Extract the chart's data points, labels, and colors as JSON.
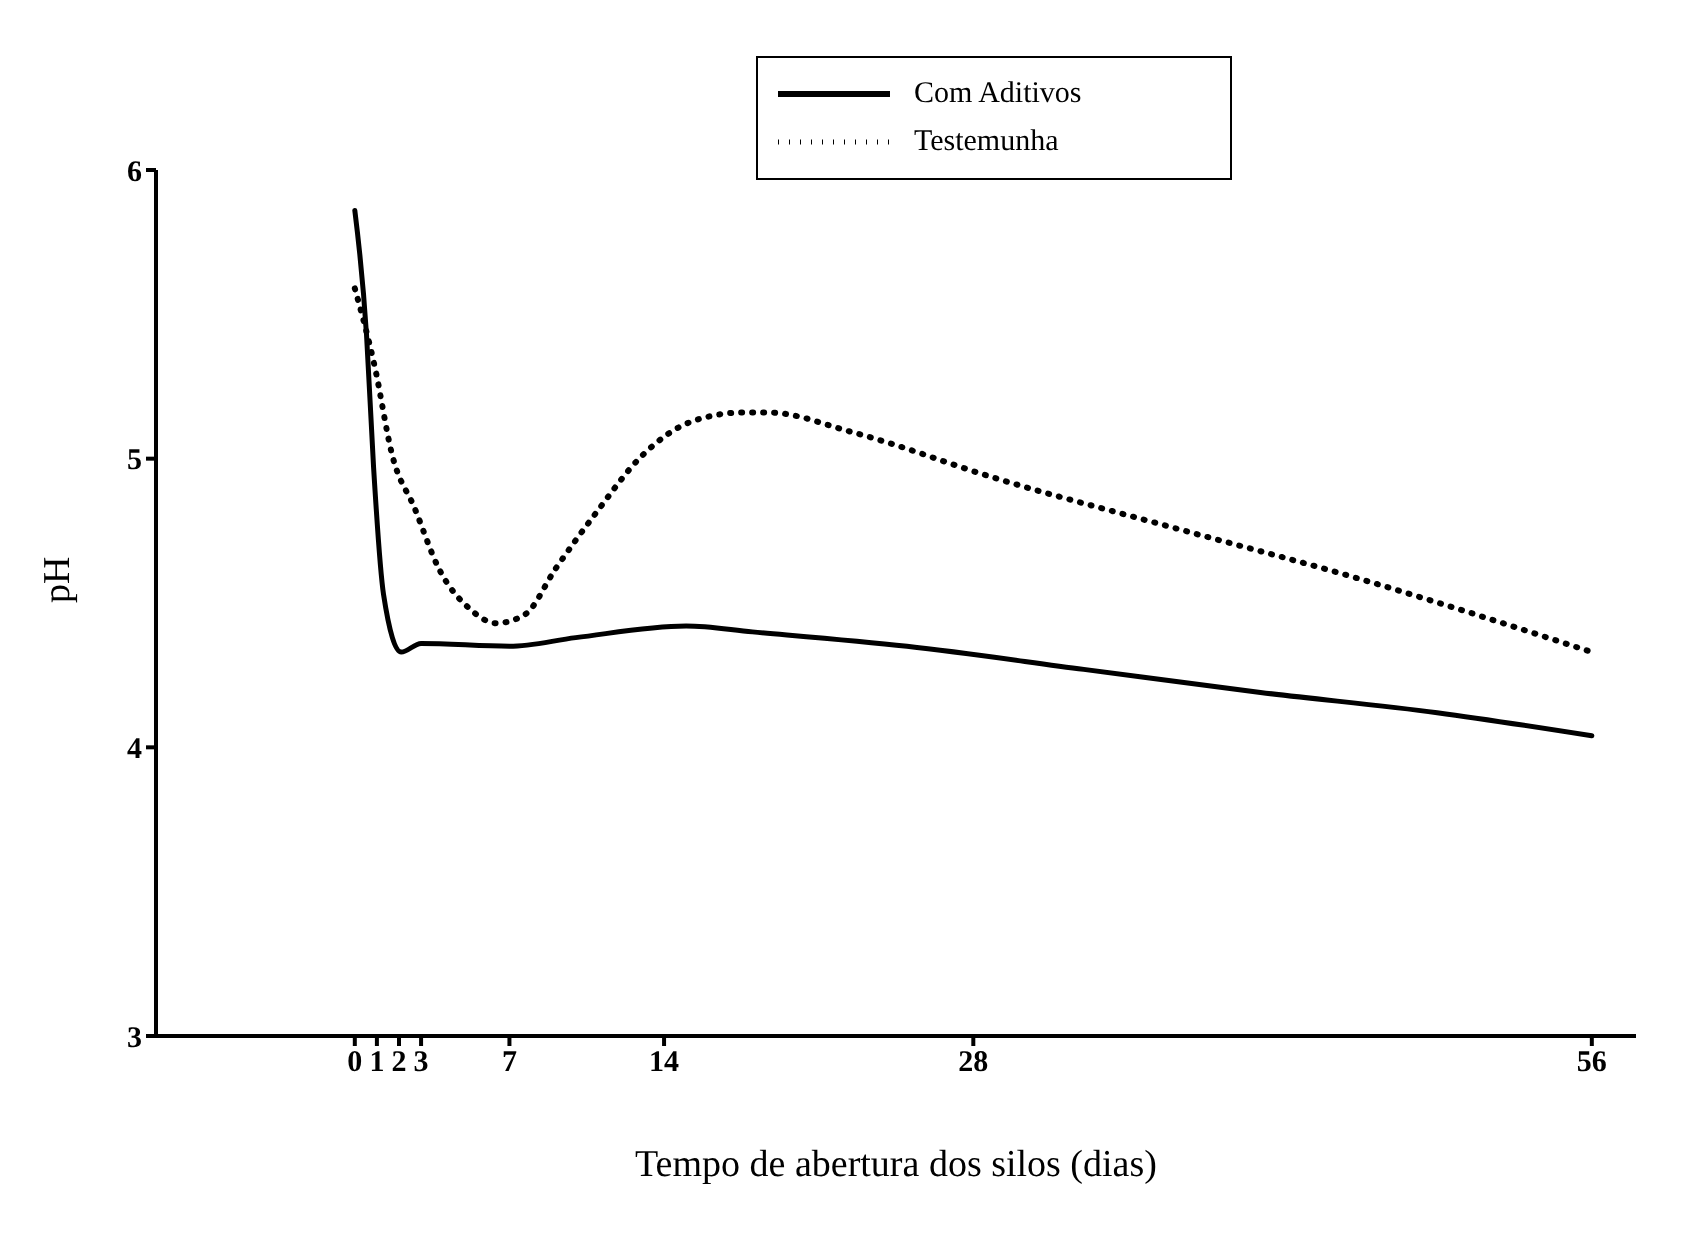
{
  "chart_data": {
    "type": "line",
    "xlabel": "Tempo de abertura dos silos (dias)",
    "ylabel": "pH",
    "xlim": [
      -9,
      58
    ],
    "xticks": [
      0,
      1,
      2,
      3,
      7,
      14,
      28,
      56
    ],
    "ylim": [
      3,
      6
    ],
    "yticks": [
      3,
      4,
      5,
      6
    ],
    "grid": false,
    "legend": "top",
    "marker": "none",
    "series": [
      {
        "name": "Com Aditivos",
        "color": "#000000",
        "line_style": "solid",
        "x": [
          0,
          0.53,
          0.85,
          1.3,
          2.1,
          3,
          7,
          10,
          15,
          18,
          25,
          33,
          41,
          49,
          56
        ],
        "values": [
          5.86,
          5.43,
          4.97,
          4.53,
          4.33,
          4.36,
          4.35,
          4.38,
          4.42,
          4.4,
          4.35,
          4.27,
          4.19,
          4.12,
          4.04
        ]
      },
      {
        "name": "Testemunha",
        "color": "#000000",
        "line_style": "dotted",
        "x": [
          0,
          0.9,
          1.7,
          2.7,
          3.8,
          5.2,
          6.4,
          7.7,
          9.1,
          10.9,
          13,
          15.3,
          17.6,
          18.7,
          22.6,
          29.1,
          37.1,
          45.2,
          56
        ],
        "values": [
          5.59,
          5.32,
          5.01,
          4.83,
          4.62,
          4.48,
          4.43,
          4.46,
          4.62,
          4.81,
          5.01,
          5.13,
          5.16,
          5.16,
          5.09,
          4.93,
          4.76,
          4.59,
          4.33
        ]
      }
    ]
  }
}
